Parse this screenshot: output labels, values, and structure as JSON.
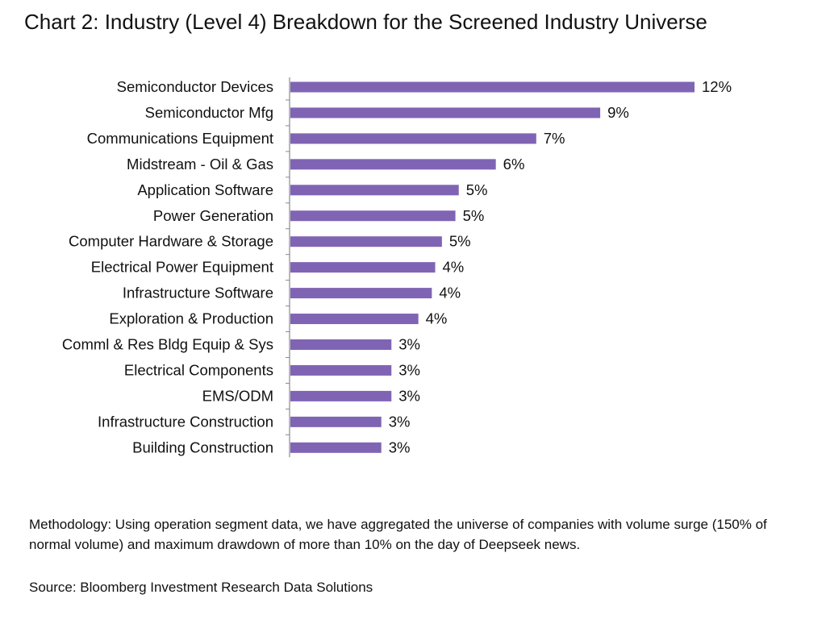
{
  "title": "Chart 2: Industry (Level 4) Breakdown for the Screened Industry Universe",
  "chart_data": {
    "type": "bar",
    "orientation": "horizontal",
    "title": "Chart 2: Industry (Level 4) Breakdown for the Screened Industry Universe",
    "xlabel": "",
    "ylabel": "",
    "categories": [
      "Semiconductor Devices",
      "Semiconductor Mfg",
      "Communications Equipment",
      "Midstream - Oil & Gas",
      "Application Software",
      "Power Generation",
      "Computer Hardware & Storage",
      "Electrical Power Equipment",
      "Infrastructure Software",
      "Exploration & Production",
      "Comml & Res Bldg Equip & Sys",
      "Electrical Components",
      "EMS/ODM",
      "Infrastructure Construction",
      "Building Construction"
    ],
    "values": [
      12.0,
      9.2,
      7.3,
      6.1,
      5.0,
      4.9,
      4.5,
      4.3,
      4.2,
      3.8,
      3.0,
      3.0,
      3.0,
      2.7,
      2.7
    ],
    "data_labels": [
      "12%",
      "9%",
      "7%",
      "6%",
      "5%",
      "5%",
      "5%",
      "4%",
      "4%",
      "4%",
      "3%",
      "3%",
      "3%",
      "3%",
      "3%"
    ],
    "xlim": [
      0,
      12
    ],
    "grid": false,
    "legend": "none",
    "bar_color": "#8064b4"
  },
  "notes": {
    "methodology": "Methodology: Using operation segment data, we have aggregated the universe of companies with volume surge (150% of normal volume) and maximum drawdown of more than 10% on the day of Deepseek news.",
    "source": "Source: Bloomberg Investment Research Data Solutions"
  }
}
